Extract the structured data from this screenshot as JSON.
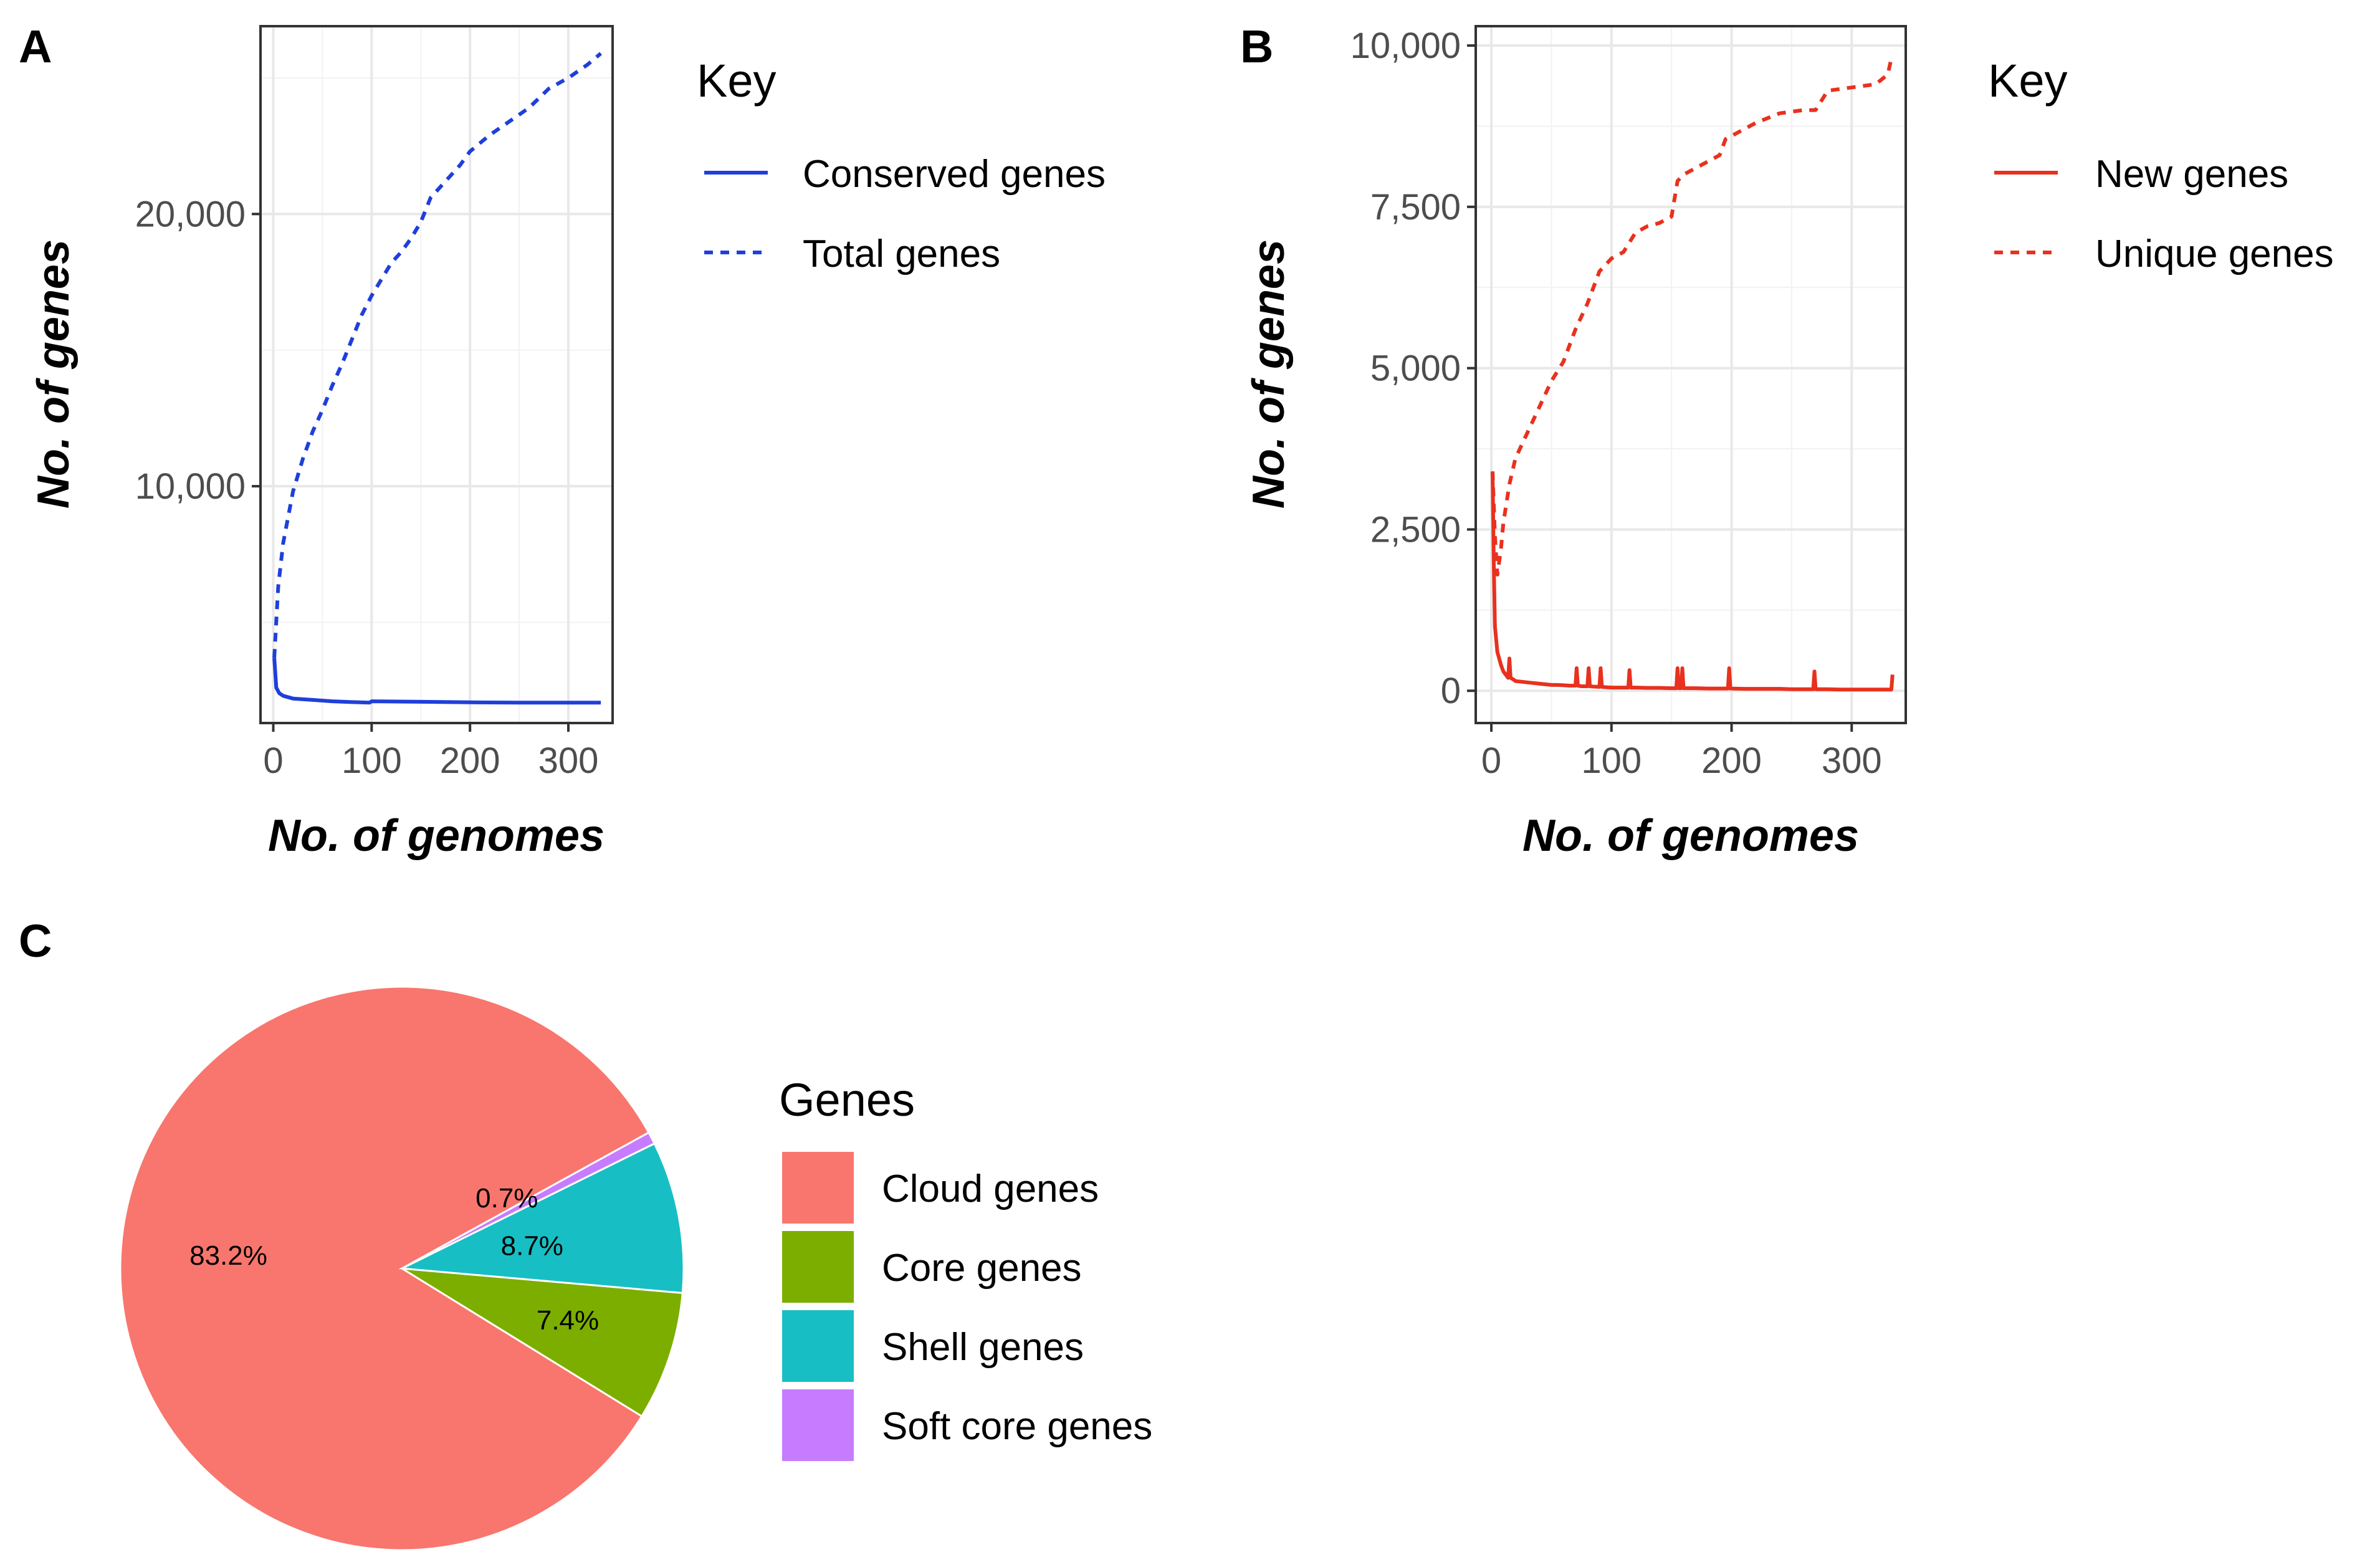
{
  "chart_data": [
    {
      "panel": "A",
      "type": "line",
      "xlabel": "No. of genomes",
      "ylabel": "No. of genes",
      "xlim": [
        -13,
        345
      ],
      "ylim": [
        1300,
        26900
      ],
      "x_ticks": [
        0,
        100,
        200,
        300
      ],
      "x_tick_labels": [
        "0",
        "100",
        "200",
        "300"
      ],
      "y_ticks": [
        10000,
        20000
      ],
      "y_tick_labels": [
        "10,000",
        "20,000"
      ],
      "legend_title": "Key",
      "series": [
        {
          "name": "Conserved genes",
          "color": "#1f3fdb",
          "dash": "solid",
          "x": [
            1,
            3,
            6,
            10,
            20,
            40,
            60,
            80,
            98,
            100,
            150,
            200,
            250,
            300,
            333
          ],
          "y": [
            3700,
            2600,
            2400,
            2300,
            2200,
            2150,
            2100,
            2070,
            2050,
            2100,
            2080,
            2060,
            2050,
            2050,
            2050
          ]
        },
        {
          "name": "Total genes",
          "color": "#1f3fdb",
          "dash": "dashed",
          "x": [
            1,
            5,
            10,
            20,
            30,
            40,
            50,
            60,
            70,
            80,
            90,
            100,
            110,
            120,
            130,
            140,
            150,
            160,
            170,
            180,
            190,
            200,
            220,
            240,
            260,
            280,
            300,
            320,
            333
          ],
          "y": [
            3700,
            6300,
            7900,
            9800,
            11000,
            12000,
            12800,
            13700,
            14500,
            15400,
            16300,
            17000,
            17600,
            18200,
            18600,
            19100,
            19700,
            20600,
            21000,
            21400,
            21800,
            22300,
            22900,
            23400,
            23900,
            24600,
            25000,
            25500,
            25900
          ]
        }
      ]
    },
    {
      "panel": "B",
      "type": "line",
      "xlabel": "No. of genomes",
      "ylabel": "No. of genes",
      "xlim": [
        -13,
        345
      ],
      "ylim": [
        -500,
        10300
      ],
      "x_ticks": [
        0,
        100,
        200,
        300
      ],
      "x_tick_labels": [
        "0",
        "100",
        "200",
        "300"
      ],
      "y_ticks": [
        0,
        2500,
        5000,
        7500,
        10000
      ],
      "y_tick_labels": [
        "0",
        "2,500",
        "5,000",
        "7,500",
        "10,000"
      ],
      "legend_title": "Key",
      "series": [
        {
          "name": "New genes",
          "color": "#e8311e",
          "dash": "solid",
          "x": [
            1,
            2,
            3,
            5,
            8,
            10,
            12,
            14,
            15,
            16,
            18,
            20,
            25,
            30,
            35,
            40,
            45,
            50,
            55,
            60,
            65,
            70,
            71,
            72,
            75,
            80,
            81,
            82,
            85,
            90,
            91,
            92,
            95,
            100,
            110,
            114,
            115,
            116,
            120,
            130,
            140,
            150,
            154,
            155,
            156,
            158,
            159,
            160,
            170,
            180,
            190,
            197,
            198,
            199,
            210,
            220,
            230,
            240,
            250,
            260,
            268,
            269,
            270,
            280,
            290,
            300,
            310,
            320,
            330,
            333,
            334
          ],
          "y": [
            3400,
            2000,
            1000,
            600,
            400,
            300,
            250,
            200,
            500,
            200,
            180,
            150,
            140,
            130,
            120,
            110,
            100,
            90,
            90,
            85,
            80,
            80,
            350,
            80,
            70,
            70,
            350,
            70,
            65,
            60,
            350,
            60,
            55,
            50,
            50,
            50,
            320,
            50,
            50,
            45,
            45,
            40,
            40,
            350,
            40,
            40,
            350,
            40,
            40,
            35,
            35,
            35,
            350,
            35,
            30,
            30,
            30,
            30,
            25,
            25,
            25,
            300,
            25,
            25,
            20,
            20,
            20,
            20,
            20,
            20,
            250
          ]
        },
        {
          "name": "Unique genes",
          "color": "#e8311e",
          "dash": "dashed",
          "x": [
            1,
            3,
            5,
            8,
            10,
            15,
            20,
            30,
            40,
            50,
            60,
            70,
            80,
            90,
            100,
            110,
            120,
            130,
            140,
            150,
            155,
            160,
            170,
            180,
            190,
            195,
            200,
            220,
            240,
            260,
            270,
            280,
            300,
            320,
            330,
            333
          ],
          "y": [
            3400,
            2400,
            1800,
            2200,
            2600,
            3200,
            3600,
            4000,
            4400,
            4800,
            5100,
            5600,
            6000,
            6500,
            6700,
            6800,
            7100,
            7200,
            7250,
            7350,
            7900,
            8000,
            8100,
            8200,
            8300,
            8550,
            8600,
            8800,
            8950,
            9000,
            9000,
            9300,
            9350,
            9400,
            9550,
            9800
          ]
        }
      ]
    },
    {
      "panel": "C",
      "type": "pie",
      "legend_title": "Genes",
      "slices": [
        {
          "name": "Cloud genes",
          "value": 83.2,
          "label": "83.2%",
          "color": "#f8766d"
        },
        {
          "name": "Core genes",
          "value": 7.4,
          "label": "7.4%",
          "color": "#7cae00"
        },
        {
          "name": "Shell genes",
          "value": 8.7,
          "label": "8.7%",
          "color": "#17bfc4"
        },
        {
          "name": "Soft core genes",
          "value": 0.7,
          "label": "0.7%",
          "color": "#c77cff"
        }
      ]
    }
  ]
}
